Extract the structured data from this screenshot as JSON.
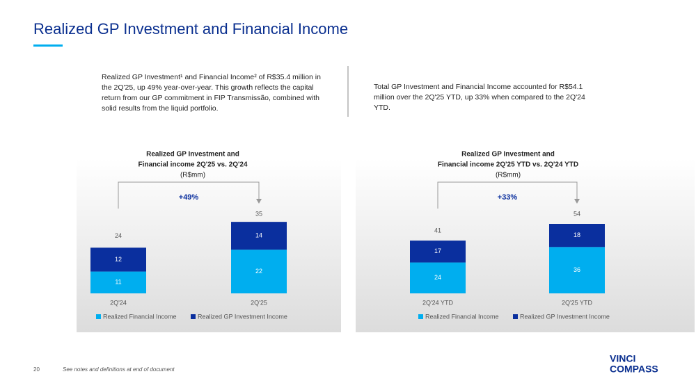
{
  "title": "Realized GP Investment and Financial Income",
  "text_left": "Realized GP Investment¹ and Financial Income² of R$35.4 million in the 2Q'25, up 49% year-over-year. This growth reflects the capital return from our GP commitment in FIP Transmissão, combined with solid results from the liquid portfolio.",
  "text_right": "Total GP Investment and Financial Income accounted for R$54.1 million over the 2Q'25 YTD, up 33% when compared to the 2Q'24 YTD.",
  "footer": {
    "page": "20",
    "note": "See notes and definitions at end of document"
  },
  "logo": [
    "VINCI",
    "COMPASS"
  ],
  "chart_data": [
    {
      "type": "bar",
      "stacked": true,
      "title": [
        "Realized GP Investment and",
        "Financial income 2Q'25 vs. 2Q'24"
      ],
      "subtitle": "(R$mm)",
      "annotation": "+49%",
      "categories": [
        "2Q'24",
        "2Q'25"
      ],
      "series": [
        {
          "name": "Realized Financial Income",
          "color": "#00aeef",
          "values": [
            11,
            22
          ]
        },
        {
          "name": "Realized GP Investment Income",
          "color": "#0a2f9e",
          "values": [
            12,
            14
          ]
        }
      ],
      "totals": [
        24,
        35
      ]
    },
    {
      "type": "bar",
      "stacked": true,
      "title": [
        "Realized GP Investment and",
        "Financial income 2Q'25 YTD vs. 2Q'24 YTD"
      ],
      "subtitle": "(R$mm)",
      "annotation": "+33%",
      "categories": [
        "2Q'24 YTD",
        "2Q'25 YTD"
      ],
      "series": [
        {
          "name": "Realized Financial Income",
          "color": "#00aeef",
          "values": [
            24,
            36
          ]
        },
        {
          "name": "Realized GP Investment Income",
          "color": "#0a2f9e",
          "values": [
            17,
            18
          ]
        }
      ],
      "totals": [
        41,
        54
      ]
    }
  ]
}
